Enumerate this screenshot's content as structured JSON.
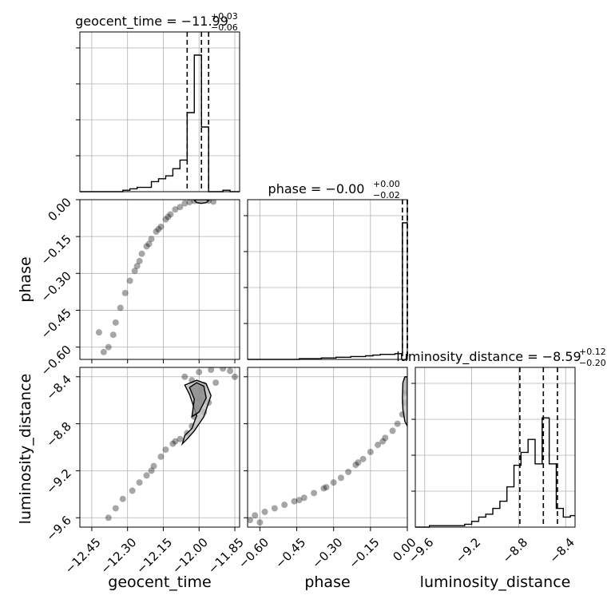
{
  "chart_data": {
    "type": "corner",
    "parameters": [
      "geocent_time",
      "phase",
      "luminosity_distance"
    ],
    "panel_titles": [
      {
        "label": "geocent_time = −11.99",
        "sup": "+0.03",
        "sub": "−0.06"
      },
      {
        "label": "phase = −0.00",
        "sup": "+0.00",
        "sub": "−0.02"
      },
      {
        "label": "luminosity_distance = −8.59",
        "sup": "+0.12",
        "sub": "−0.20"
      }
    ],
    "axis_labels": {
      "geocent_time": "geocent_time",
      "phase": "phase",
      "luminosity_distance": "luminosity_distance"
    },
    "ranges": {
      "geocent_time": [
        -12.5,
        -11.83
      ],
      "phase": [
        -0.65,
        0.0
      ],
      "luminosity_distance": [
        -9.68,
        -8.32
      ]
    },
    "ticks": {
      "geocent_time": {
        "values": [
          -12.45,
          -12.3,
          -12.15,
          -12.0,
          -11.85
        ],
        "labels": [
          "−12.45",
          "−12.30",
          "−12.15",
          "−12.00",
          "−11.85"
        ]
      },
      "phase": {
        "values": [
          -0.6,
          -0.45,
          -0.3,
          -0.15,
          0.0
        ],
        "labels": [
          "−0.60",
          "−0.45",
          "−0.30",
          "−0.15",
          "0.00"
        ]
      },
      "luminosity_distance": {
        "values": [
          -9.6,
          -9.2,
          -8.8,
          -8.4
        ],
        "labels": [
          "−9.6",
          "−9.2",
          "−8.8",
          "−8.4"
        ]
      }
    },
    "quantiles": {
      "geocent_time": [
        -12.05,
        -11.99,
        -11.96
      ],
      "phase": [
        -0.02,
        0.0,
        0.0
      ],
      "luminosity_distance": [
        -8.79,
        -8.59,
        -8.47
      ]
    },
    "histograms": {
      "geocent_time": {
        "edges": [
          -12.5,
          -12.47,
          -12.44,
          -12.41,
          -12.38,
          -12.35,
          -12.32,
          -12.29,
          -12.26,
          -12.23,
          -12.2,
          -12.17,
          -12.14,
          -12.11,
          -12.08,
          -12.05,
          -12.02,
          -11.99,
          -11.96,
          -11.93,
          -11.9,
          -11.87,
          -11.83
        ],
        "counts": [
          0,
          0,
          0,
          0,
          0,
          0,
          0.01,
          0.02,
          0.03,
          0.03,
          0.07,
          0.09,
          0.11,
          0.16,
          0.22,
          0.55,
          0.95,
          0.45,
          0,
          0,
          0.01,
          0
        ]
      },
      "phase": {
        "edges": [
          -0.65,
          -0.62,
          -0.59,
          -0.56,
          -0.53,
          -0.5,
          -0.47,
          -0.44,
          -0.41,
          -0.38,
          -0.35,
          -0.32,
          -0.29,
          -0.26,
          -0.23,
          -0.2,
          -0.17,
          -0.14,
          -0.11,
          -0.08,
          -0.05,
          -0.02,
          0.0
        ],
        "counts": [
          0,
          0,
          0,
          0,
          0,
          0,
          0,
          0.005,
          0.005,
          0.005,
          0.01,
          0.01,
          0.015,
          0.015,
          0.02,
          0.02,
          0.025,
          0.03,
          0.035,
          0.035,
          0.04,
          0.95
        ]
      },
      "luminosity_distance": {
        "edges": [
          -9.68,
          -9.62,
          -9.56,
          -9.5,
          -9.44,
          -9.38,
          -9.32,
          -9.26,
          -9.2,
          -9.14,
          -9.08,
          -9.02,
          -8.96,
          -8.9,
          -8.84,
          -8.78,
          -8.72,
          -8.66,
          -8.6,
          -8.54,
          -8.48,
          -8.42,
          -8.36,
          -8.32
        ],
        "counts": [
          0,
          0,
          0.01,
          0.01,
          0.01,
          0.01,
          0.01,
          0.02,
          0.04,
          0.07,
          0.09,
          0.13,
          0.18,
          0.28,
          0.43,
          0.52,
          0.61,
          0.44,
          0.76,
          0.44,
          0.13,
          0.07,
          0.08
        ]
      }
    },
    "samples_2d": {
      "phase_vs_geocent_time": [
        [
          -12.4,
          -0.62
        ],
        [
          -12.38,
          -0.6
        ],
        [
          -12.42,
          -0.54
        ],
        [
          -12.36,
          -0.55
        ],
        [
          -12.35,
          -0.5
        ],
        [
          -12.33,
          -0.44
        ],
        [
          -12.31,
          -0.38
        ],
        [
          -12.29,
          -0.33
        ],
        [
          -12.27,
          -0.29
        ],
        [
          -12.25,
          -0.25
        ],
        [
          -12.24,
          -0.22
        ],
        [
          -12.22,
          -0.19
        ],
        [
          -12.2,
          -0.16
        ],
        [
          -12.18,
          -0.13
        ],
        [
          -12.16,
          -0.11
        ],
        [
          -12.14,
          -0.08
        ],
        [
          -12.12,
          -0.06
        ],
        [
          -12.1,
          -0.04
        ],
        [
          -12.08,
          -0.03
        ],
        [
          -12.06,
          -0.015
        ],
        [
          -12.04,
          -0.01
        ],
        [
          -12.02,
          -0.005
        ],
        [
          -12.0,
          -0.002
        ],
        [
          -11.98,
          -0.002
        ],
        [
          -11.96,
          -0.004
        ],
        [
          -11.94,
          -0.008
        ],
        [
          -12.26,
          -0.27
        ],
        [
          -12.21,
          -0.18
        ],
        [
          -12.17,
          -0.12
        ],
        [
          -12.13,
          -0.07
        ]
      ],
      "luminosity_distance_vs_geocent_time": [
        [
          -12.38,
          -9.6
        ],
        [
          -12.35,
          -9.52
        ],
        [
          -12.32,
          -9.44
        ],
        [
          -12.28,
          -9.37
        ],
        [
          -12.25,
          -9.3
        ],
        [
          -12.22,
          -9.24
        ],
        [
          -12.19,
          -9.16
        ],
        [
          -12.16,
          -9.08
        ],
        [
          -12.14,
          -9.02
        ],
        [
          -12.11,
          -8.97
        ],
        [
          -12.08,
          -8.93
        ],
        [
          -12.05,
          -8.88
        ],
        [
          -12.03,
          -8.82
        ],
        [
          -12.02,
          -8.74
        ],
        [
          -12.01,
          -8.66
        ],
        [
          -12.0,
          -8.59
        ],
        [
          -11.99,
          -8.52
        ],
        [
          -11.98,
          -8.47
        ],
        [
          -12.03,
          -8.43
        ],
        [
          -12.06,
          -8.4
        ],
        [
          -12.0,
          -8.36
        ],
        [
          -11.95,
          -8.34
        ],
        [
          -11.9,
          -8.33
        ],
        [
          -11.87,
          -8.35
        ],
        [
          -11.85,
          -8.4
        ],
        [
          -11.93,
          -8.45
        ],
        [
          -11.96,
          -8.62
        ],
        [
          -11.98,
          -8.7
        ],
        [
          -12.2,
          -9.2
        ],
        [
          -12.1,
          -8.95
        ]
      ],
      "luminosity_distance_vs_phase": [
        [
          -0.64,
          -9.62
        ],
        [
          -0.62,
          -9.58
        ],
        [
          -0.58,
          -9.55
        ],
        [
          -0.54,
          -9.52
        ],
        [
          -0.5,
          -9.49
        ],
        [
          -0.46,
          -9.46
        ],
        [
          -0.42,
          -9.43
        ],
        [
          -0.38,
          -9.39
        ],
        [
          -0.34,
          -9.35
        ],
        [
          -0.3,
          -9.3
        ],
        [
          -0.27,
          -9.26
        ],
        [
          -0.24,
          -9.21
        ],
        [
          -0.21,
          -9.15
        ],
        [
          -0.18,
          -9.1
        ],
        [
          -0.15,
          -9.04
        ],
        [
          -0.12,
          -8.98
        ],
        [
          -0.09,
          -8.92
        ],
        [
          -0.06,
          -8.86
        ],
        [
          -0.04,
          -8.8
        ],
        [
          -0.02,
          -8.72
        ],
        [
          -0.01,
          -8.62
        ],
        [
          -0.005,
          -8.54
        ],
        [
          -0.003,
          -8.47
        ],
        [
          -0.002,
          -8.42
        ],
        [
          -0.004,
          -8.52
        ],
        [
          -0.6,
          -9.64
        ],
        [
          -0.1,
          -8.95
        ],
        [
          -0.2,
          -9.13
        ],
        [
          -0.33,
          -9.34
        ],
        [
          -0.44,
          -9.45
        ]
      ]
    },
    "contours_2d": {
      "phase_vs_geocent_time": [
        [
          [
            -12.02,
            -0.002
          ],
          [
            -12.01,
            -0.012
          ],
          [
            -11.99,
            -0.015
          ],
          [
            -11.97,
            -0.012
          ],
          [
            -11.96,
            -0.004
          ],
          [
            -11.97,
            0.0
          ],
          [
            -12.01,
            0.0
          ]
        ]
      ],
      "luminosity_distance_vs_geocent_time": [
        [
          [
            -12.07,
            -8.97
          ],
          [
            -12.06,
            -8.9
          ],
          [
            -12.03,
            -8.84
          ],
          [
            -12.01,
            -8.73
          ],
          [
            -12.04,
            -8.55
          ],
          [
            -12.06,
            -8.47
          ],
          [
            -12.01,
            -8.43
          ],
          [
            -11.97,
            -8.46
          ],
          [
            -11.95,
            -8.56
          ],
          [
            -11.98,
            -8.74
          ],
          [
            -12.02,
            -8.86
          ],
          [
            -12.05,
            -8.93
          ]
        ],
        [
          [
            -12.03,
            -8.74
          ],
          [
            -12.02,
            -8.59
          ],
          [
            -12.04,
            -8.49
          ],
          [
            -12.01,
            -8.45
          ],
          [
            -11.98,
            -8.48
          ],
          [
            -11.97,
            -8.58
          ],
          [
            -12.0,
            -8.7
          ]
        ]
      ],
      "luminosity_distance_vs_phase": [
        [
          [
            0.0,
            -8.82
          ],
          [
            -0.01,
            -8.78
          ],
          [
            -0.018,
            -8.68
          ],
          [
            -0.02,
            -8.58
          ],
          [
            -0.018,
            -8.45
          ],
          [
            -0.01,
            -8.4
          ],
          [
            0.0,
            -8.4
          ]
        ]
      ]
    }
  }
}
